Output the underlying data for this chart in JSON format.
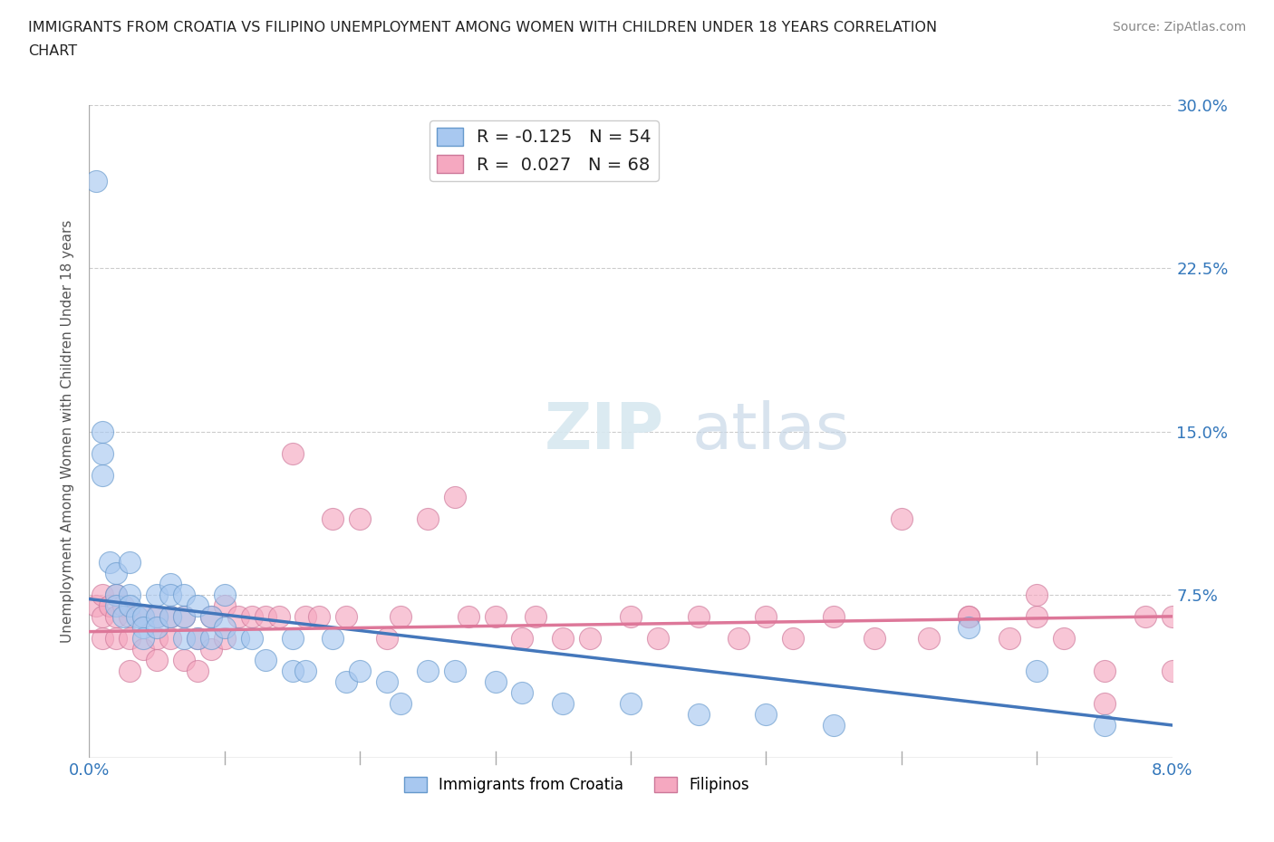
{
  "title_line1": "IMMIGRANTS FROM CROATIA VS FILIPINO UNEMPLOYMENT AMONG WOMEN WITH CHILDREN UNDER 18 YEARS CORRELATION",
  "title_line2": "CHART",
  "source_text": "Source: ZipAtlas.com",
  "ylabel": "Unemployment Among Women with Children Under 18 years",
  "xlim": [
    0.0,
    0.08
  ],
  "ylim": [
    0.0,
    0.3
  ],
  "xticks": [
    0.0,
    0.01,
    0.02,
    0.03,
    0.04,
    0.05,
    0.06,
    0.07,
    0.08
  ],
  "xticklabels": [
    "0.0%",
    "",
    "",
    "",
    "",
    "",
    "",
    "",
    "8.0%"
  ],
  "yticks": [
    0.0,
    0.075,
    0.15,
    0.225,
    0.3
  ],
  "yticklabels": [
    "",
    "7.5%",
    "15.0%",
    "22.5%",
    "30.0%"
  ],
  "legend_label1": "R = -0.125   N = 54",
  "legend_label2": "R =  0.027   N = 68",
  "legend_bottom_label1": "Immigrants from Croatia",
  "legend_bottom_label2": "Filipinos",
  "croatia_color": "#a8c8f0",
  "filipino_color": "#f5a8c0",
  "croatia_edge_color": "#6699cc",
  "filipino_edge_color": "#cc7799",
  "croatia_line_color": "#4477bb",
  "filipino_line_color": "#dd7799",
  "watermark_ZIP": "ZIP",
  "watermark_atlas": "atlas",
  "croatia_x": [
    0.0005,
    0.001,
    0.001,
    0.001,
    0.0015,
    0.002,
    0.002,
    0.002,
    0.0025,
    0.003,
    0.003,
    0.003,
    0.0035,
    0.004,
    0.004,
    0.004,
    0.005,
    0.005,
    0.005,
    0.006,
    0.006,
    0.006,
    0.007,
    0.007,
    0.007,
    0.008,
    0.008,
    0.009,
    0.009,
    0.01,
    0.01,
    0.011,
    0.012,
    0.013,
    0.015,
    0.015,
    0.016,
    0.018,
    0.019,
    0.02,
    0.022,
    0.023,
    0.025,
    0.027,
    0.03,
    0.032,
    0.035,
    0.04,
    0.045,
    0.05,
    0.055,
    0.065,
    0.07,
    0.075
  ],
  "croatia_y": [
    0.265,
    0.15,
    0.14,
    0.13,
    0.09,
    0.085,
    0.075,
    0.07,
    0.065,
    0.09,
    0.075,
    0.07,
    0.065,
    0.065,
    0.06,
    0.055,
    0.075,
    0.065,
    0.06,
    0.08,
    0.075,
    0.065,
    0.075,
    0.065,
    0.055,
    0.07,
    0.055,
    0.065,
    0.055,
    0.075,
    0.06,
    0.055,
    0.055,
    0.045,
    0.055,
    0.04,
    0.04,
    0.055,
    0.035,
    0.04,
    0.035,
    0.025,
    0.04,
    0.04,
    0.035,
    0.03,
    0.025,
    0.025,
    0.02,
    0.02,
    0.015,
    0.06,
    0.04,
    0.015
  ],
  "filipino_x": [
    0.0005,
    0.001,
    0.001,
    0.001,
    0.0015,
    0.002,
    0.002,
    0.002,
    0.0025,
    0.003,
    0.003,
    0.003,
    0.004,
    0.004,
    0.005,
    0.005,
    0.005,
    0.006,
    0.006,
    0.007,
    0.007,
    0.008,
    0.008,
    0.009,
    0.009,
    0.01,
    0.01,
    0.011,
    0.012,
    0.013,
    0.014,
    0.015,
    0.016,
    0.017,
    0.018,
    0.019,
    0.02,
    0.022,
    0.023,
    0.025,
    0.027,
    0.028,
    0.03,
    0.032,
    0.033,
    0.035,
    0.037,
    0.04,
    0.042,
    0.045,
    0.048,
    0.05,
    0.052,
    0.055,
    0.058,
    0.06,
    0.062,
    0.065,
    0.068,
    0.07,
    0.072,
    0.075,
    0.078,
    0.08,
    0.08,
    0.065,
    0.07,
    0.075
  ],
  "filipino_y": [
    0.07,
    0.075,
    0.065,
    0.055,
    0.07,
    0.075,
    0.065,
    0.055,
    0.07,
    0.065,
    0.055,
    0.04,
    0.065,
    0.05,
    0.065,
    0.055,
    0.045,
    0.065,
    0.055,
    0.065,
    0.045,
    0.055,
    0.04,
    0.065,
    0.05,
    0.07,
    0.055,
    0.065,
    0.065,
    0.065,
    0.065,
    0.14,
    0.065,
    0.065,
    0.11,
    0.065,
    0.11,
    0.055,
    0.065,
    0.11,
    0.12,
    0.065,
    0.065,
    0.055,
    0.065,
    0.055,
    0.055,
    0.065,
    0.055,
    0.065,
    0.055,
    0.065,
    0.055,
    0.065,
    0.055,
    0.11,
    0.055,
    0.065,
    0.055,
    0.065,
    0.055,
    0.04,
    0.065,
    0.065,
    0.04,
    0.065,
    0.075,
    0.025
  ],
  "croatia_trendline_x": [
    0.0,
    0.08
  ],
  "croatia_trendline_y": [
    0.073,
    0.015
  ],
  "filipino_trendline_x": [
    0.0,
    0.08
  ],
  "filipino_trendline_y": [
    0.058,
    0.065
  ]
}
